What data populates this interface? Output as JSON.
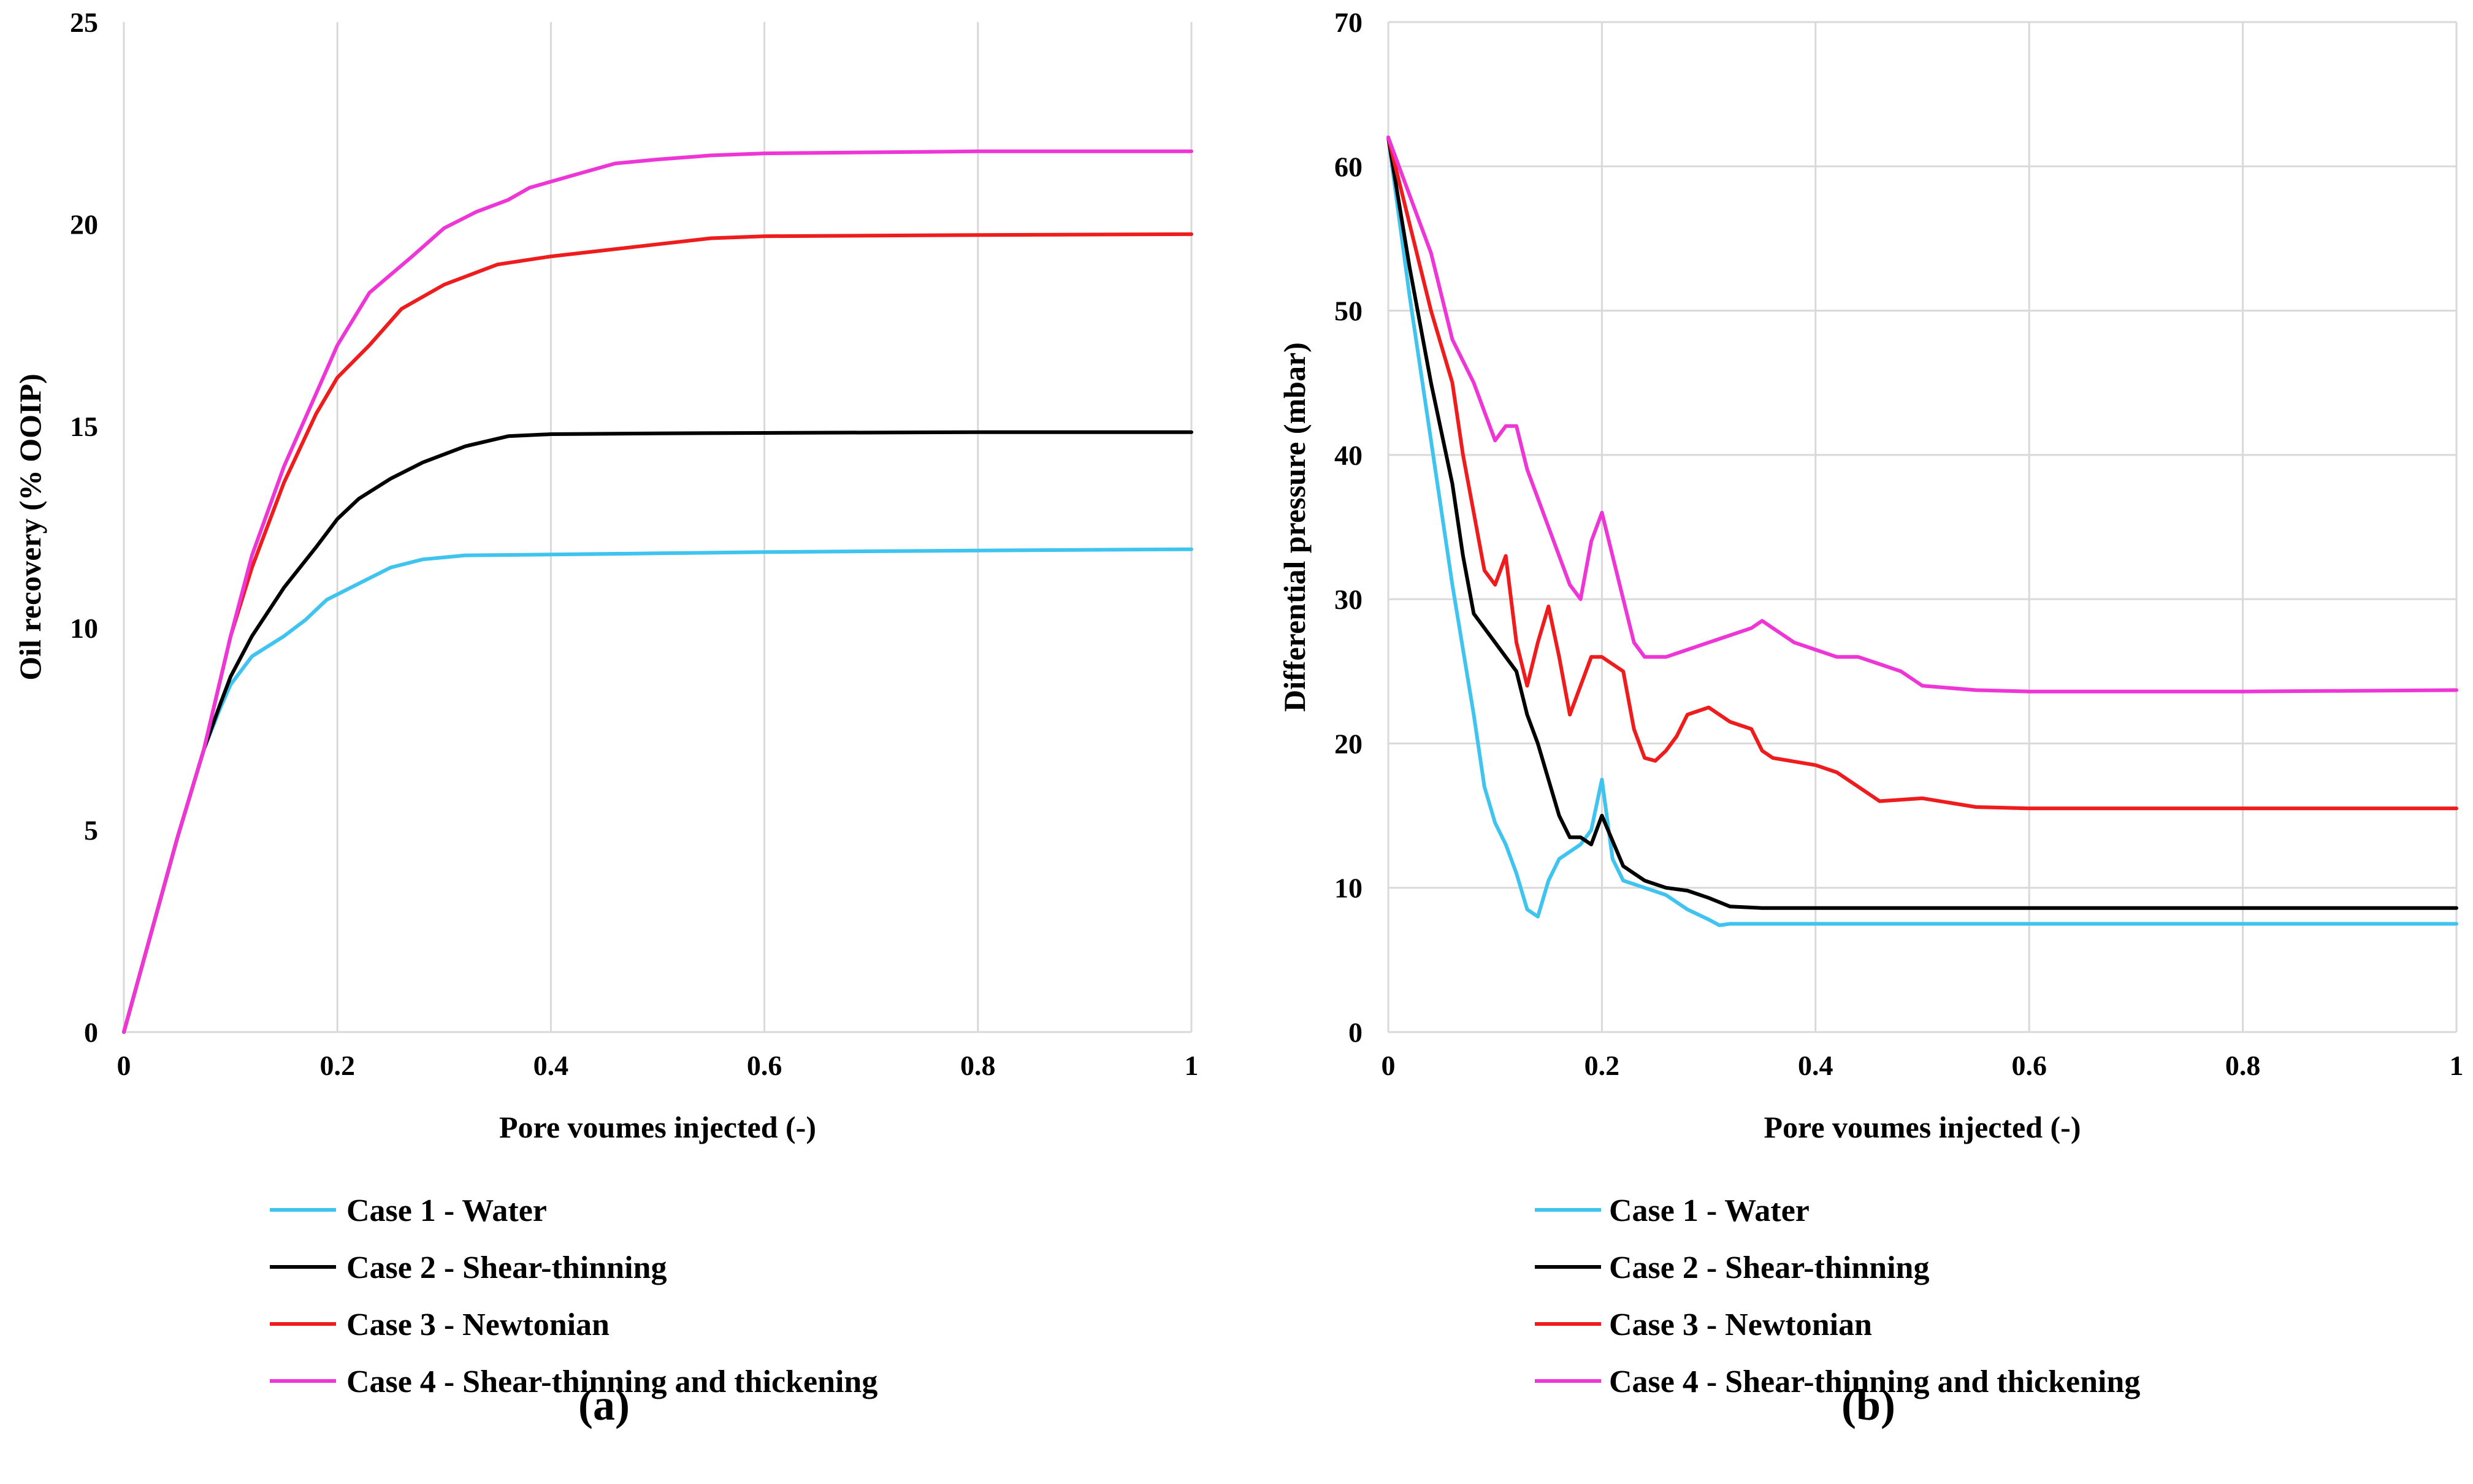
{
  "chart_data": [
    {
      "type": "line",
      "panel_label": "(a)",
      "title": "",
      "xlabel": "Pore voumes injected (-)",
      "ylabel": "Oil recovery (% OOIP)",
      "xlim": [
        0,
        1
      ],
      "ylim": [
        0,
        25
      ],
      "xticks": [
        "0",
        "0.2",
        "0.4",
        "0.6",
        "0.8",
        "1"
      ],
      "yticks": [
        "0",
        "5",
        "10",
        "15",
        "20",
        "25"
      ],
      "grid": "vertical",
      "legend_position": "bottom",
      "series": [
        {
          "name": "Case 1 - Water",
          "color": "#3fc3ef",
          "x": [
            0,
            0.05,
            0.075,
            0.09,
            0.1,
            0.12,
            0.15,
            0.17,
            0.19,
            0.22,
            0.25,
            0.28,
            0.32,
            0.4,
            0.5,
            0.6,
            0.8,
            1.0
          ],
          "y": [
            0,
            4.8,
            7.0,
            8.0,
            8.6,
            9.3,
            9.8,
            10.2,
            10.7,
            11.1,
            11.5,
            11.7,
            11.8,
            11.82,
            11.85,
            11.88,
            11.92,
            11.95
          ]
        },
        {
          "name": "Case 2 - Shear-thinning",
          "color": "#000000",
          "x": [
            0,
            0.05,
            0.075,
            0.09,
            0.1,
            0.12,
            0.15,
            0.18,
            0.2,
            0.22,
            0.25,
            0.28,
            0.32,
            0.36,
            0.4,
            0.5,
            0.6,
            0.8,
            1.0
          ],
          "y": [
            0,
            4.8,
            7.0,
            8.1,
            8.8,
            9.8,
            11.0,
            12.0,
            12.7,
            13.2,
            13.7,
            14.1,
            14.5,
            14.75,
            14.8,
            14.82,
            14.83,
            14.85,
            14.85
          ]
        },
        {
          "name": "Case 3 - Newtonian",
          "color": "#ee1c1c",
          "x": [
            0,
            0.05,
            0.075,
            0.1,
            0.12,
            0.15,
            0.18,
            0.2,
            0.23,
            0.26,
            0.3,
            0.35,
            0.4,
            0.5,
            0.55,
            0.6,
            0.8,
            1.0
          ],
          "y": [
            0,
            4.8,
            7.0,
            9.8,
            11.5,
            13.6,
            15.3,
            16.2,
            17.0,
            17.9,
            18.5,
            19.0,
            19.2,
            19.5,
            19.65,
            19.7,
            19.73,
            19.75
          ]
        },
        {
          "name": "Case 4 - Shear-thinning and thickening",
          "color": "#ee36d6",
          "x": [
            0,
            0.05,
            0.075,
            0.1,
            0.12,
            0.15,
            0.18,
            0.2,
            0.23,
            0.27,
            0.3,
            0.33,
            0.36,
            0.38,
            0.42,
            0.46,
            0.5,
            0.55,
            0.6,
            0.8,
            1.0
          ],
          "y": [
            0,
            4.8,
            7.0,
            9.8,
            11.8,
            14.0,
            15.8,
            17.0,
            18.3,
            19.2,
            19.9,
            20.3,
            20.6,
            20.9,
            21.2,
            21.5,
            21.6,
            21.7,
            21.75,
            21.8,
            21.8
          ]
        }
      ]
    },
    {
      "type": "line",
      "panel_label": "(b)",
      "title": "",
      "xlabel": "Pore voumes injected (-)",
      "ylabel": "Differential pressure (mbar)",
      "xlim": [
        0,
        1
      ],
      "ylim": [
        0,
        70
      ],
      "xticks": [
        "0",
        "0.2",
        "0.4",
        "0.6",
        "0.8",
        "1"
      ],
      "yticks": [
        "0",
        "10",
        "20",
        "30",
        "40",
        "50",
        "60",
        "70"
      ],
      "grid": "both",
      "legend_position": "bottom",
      "series": [
        {
          "name": "Case 1 - Water",
          "color": "#3fc3ef",
          "x": [
            0,
            0.02,
            0.04,
            0.06,
            0.08,
            0.09,
            0.1,
            0.11,
            0.12,
            0.13,
            0.14,
            0.15,
            0.16,
            0.17,
            0.18,
            0.19,
            0.2,
            0.21,
            0.22,
            0.24,
            0.26,
            0.28,
            0.3,
            0.31,
            0.32,
            0.4,
            0.6,
            0.8,
            1.0
          ],
          "y": [
            62,
            51,
            41,
            31,
            22,
            17,
            14.5,
            13,
            11,
            8.5,
            8,
            10.5,
            12,
            12.5,
            13,
            14,
            17.5,
            12,
            10.5,
            10,
            9.5,
            8.5,
            7.8,
            7.4,
            7.5,
            7.5,
            7.5,
            7.5,
            7.5
          ]
        },
        {
          "name": "Case 2 - Shear-thinning",
          "color": "#000000",
          "x": [
            0,
            0.02,
            0.04,
            0.06,
            0.07,
            0.08,
            0.09,
            0.1,
            0.11,
            0.12,
            0.13,
            0.14,
            0.15,
            0.16,
            0.17,
            0.18,
            0.19,
            0.2,
            0.22,
            0.24,
            0.26,
            0.28,
            0.3,
            0.32,
            0.35,
            0.4,
            0.6,
            0.8,
            1.0
          ],
          "y": [
            62,
            53,
            45,
            38,
            33,
            29,
            28,
            27,
            26,
            25,
            22,
            20,
            17.5,
            15,
            13.5,
            13.5,
            13,
            15,
            11.5,
            10.5,
            10,
            9.8,
            9.3,
            8.7,
            8.6,
            8.6,
            8.6,
            8.6,
            8.6
          ]
        },
        {
          "name": "Case 3 - Newtonian",
          "color": "#ee1c1c",
          "x": [
            0,
            0.02,
            0.04,
            0.06,
            0.07,
            0.08,
            0.09,
            0.1,
            0.11,
            0.12,
            0.13,
            0.14,
            0.15,
            0.16,
            0.17,
            0.18,
            0.19,
            0.2,
            0.22,
            0.23,
            0.24,
            0.25,
            0.26,
            0.27,
            0.28,
            0.3,
            0.32,
            0.34,
            0.35,
            0.36,
            0.4,
            0.42,
            0.44,
            0.46,
            0.5,
            0.55,
            0.6,
            0.8,
            1.0
          ],
          "y": [
            62,
            56,
            50,
            45,
            40,
            36,
            32,
            31,
            33,
            27,
            24,
            27,
            29.5,
            26,
            22,
            24,
            26,
            26,
            25,
            21,
            19,
            18.8,
            19.5,
            20.5,
            22,
            22.5,
            21.5,
            21,
            19.5,
            19,
            18.5,
            18,
            17,
            16,
            16.2,
            15.6,
            15.5,
            15.5,
            15.5
          ]
        },
        {
          "name": "Case 4 - Shear-thinning and thickening",
          "color": "#ee36d6",
          "x": [
            0,
            0.02,
            0.04,
            0.06,
            0.08,
            0.09,
            0.1,
            0.11,
            0.12,
            0.13,
            0.14,
            0.15,
            0.16,
            0.17,
            0.18,
            0.19,
            0.2,
            0.21,
            0.22,
            0.23,
            0.24,
            0.26,
            0.28,
            0.3,
            0.32,
            0.34,
            0.35,
            0.36,
            0.38,
            0.4,
            0.42,
            0.44,
            0.46,
            0.48,
            0.5,
            0.55,
            0.6,
            0.8,
            1.0
          ],
          "y": [
            62,
            58,
            54,
            48,
            45,
            43,
            41,
            42,
            42,
            39,
            37,
            35,
            33,
            31,
            30,
            34,
            36,
            33,
            30,
            27,
            26,
            26,
            26.5,
            27,
            27.5,
            28,
            28.5,
            28,
            27,
            26.5,
            26,
            26,
            25.5,
            25,
            24,
            23.7,
            23.6,
            23.6,
            23.7
          ]
        }
      ]
    }
  ]
}
